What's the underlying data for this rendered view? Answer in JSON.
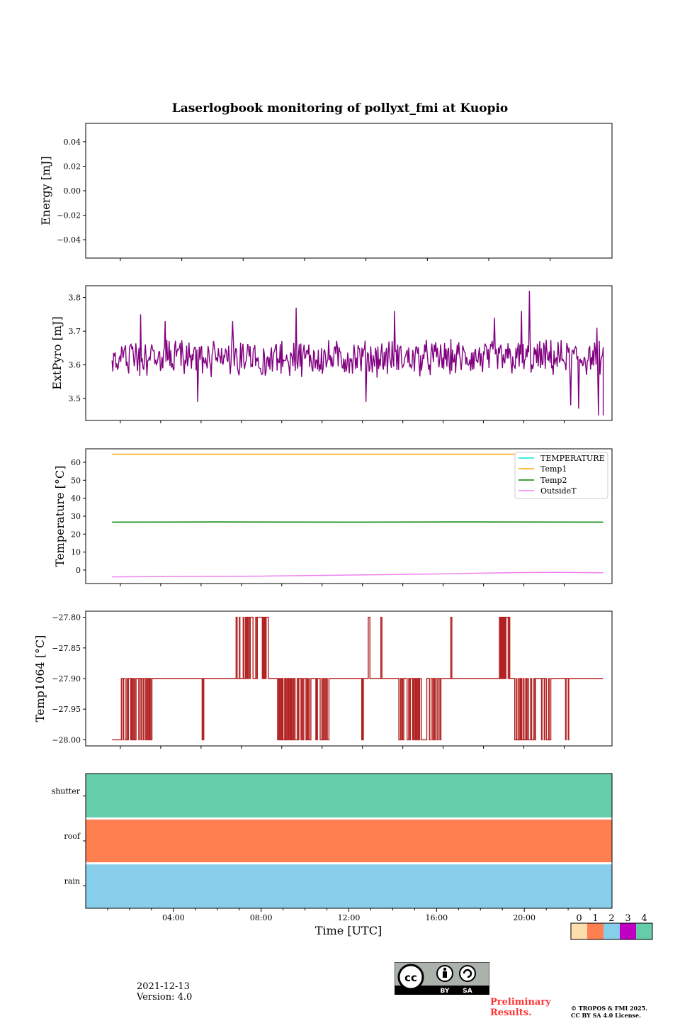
{
  "figure": {
    "title": "Laserlogbook monitoring of pollyxt_fmi at Kuopio",
    "xlabel": "Time [UTC]",
    "date": "2021-12-13",
    "version": "Version: 4.0",
    "preliminary_line1": "Preliminary",
    "preliminary_line2": "Results.",
    "copyright_line1": "© TROPOS & FMI 2025.",
    "copyright_line2": "CC BY SA 4.0 License.",
    "license_badge": [
      "BY",
      "SA"
    ]
  },
  "chart_data": [
    {
      "type": "line",
      "name": "energy",
      "ylabel": "Energy [mJ]",
      "ylim": [
        -0.055,
        0.055
      ],
      "yticks": [
        0.04,
        0.02,
        0.0,
        -0.02,
        -0.04
      ],
      "ytick_labels": [
        "0.04",
        "0.02",
        "0.00",
        "−0.02",
        "−0.04"
      ],
      "xlim": [
        0,
        24
      ],
      "series": []
    },
    {
      "type": "line",
      "name": "extpyro",
      "ylabel": "ExtPyro [mJ]",
      "ylim": [
        3.435,
        3.835
      ],
      "yticks": [
        3.8,
        3.7,
        3.6,
        3.5
      ],
      "ytick_labels": [
        "3.8",
        "3.7",
        "3.6",
        "3.5"
      ],
      "xlim": [
        0,
        24
      ],
      "series": [
        {
          "name": "ExtPyro",
          "color": "#800080",
          "x_range": [
            1.2,
            25.2
          ],
          "mean": 3.62,
          "noise_amplitude": 0.045,
          "spikes": [
            {
              "x": 2.6,
              "y": 3.75
            },
            {
              "x": 3.8,
              "y": 3.73
            },
            {
              "x": 5.4,
              "y": 3.49
            },
            {
              "x": 7.1,
              "y": 3.73
            },
            {
              "x": 10.2,
              "y": 3.77
            },
            {
              "x": 13.6,
              "y": 3.49
            },
            {
              "x": 15.0,
              "y": 3.76
            },
            {
              "x": 19.9,
              "y": 3.74
            },
            {
              "x": 21.2,
              "y": 3.76
            },
            {
              "x": 21.6,
              "y": 3.82
            },
            {
              "x": 23.6,
              "y": 3.48
            },
            {
              "x": 24.0,
              "y": 3.47
            },
            {
              "x": 24.9,
              "y": 3.71
            },
            {
              "x": 24.96,
              "y": 3.45
            }
          ]
        }
      ]
    },
    {
      "type": "line",
      "name": "temperature",
      "ylabel": "Temperature [°C]",
      "ylim": [
        -7.5,
        67.5
      ],
      "yticks": [
        60,
        50,
        40,
        30,
        20,
        10,
        0
      ],
      "ytick_labels": [
        "60",
        "50",
        "40",
        "30",
        "20",
        "10",
        "0"
      ],
      "xlim": [
        0,
        24
      ],
      "legend": [
        "TEMPERATURE",
        "Temp1",
        "Temp2",
        "OutsideT"
      ],
      "legend_position": "top-right",
      "series": [
        {
          "name": "TEMPERATURE",
          "color": "#00e5e5",
          "x": [],
          "values": []
        },
        {
          "name": "Temp1",
          "color": "#ffa500",
          "x": [
            1.2,
            24.0
          ],
          "values": [
            64.5,
            64.5
          ]
        },
        {
          "name": "Temp2",
          "color": "#008000",
          "x": [
            1.2,
            6.0,
            12.0,
            18.0,
            24.0
          ],
          "values": [
            26.7,
            26.8,
            26.7,
            26.8,
            26.7
          ]
        },
        {
          "name": "OutsideT",
          "color": "#ee82ee",
          "x": [
            1.2,
            4.0,
            8.0,
            12.0,
            16.0,
            20.0,
            22.0,
            24.0
          ],
          "values": [
            -3.8,
            -3.6,
            -3.4,
            -2.8,
            -2.2,
            -1.4,
            -1.3,
            -1.5
          ]
        }
      ]
    },
    {
      "type": "line",
      "name": "temp1064",
      "ylabel": "Temp1064 [°C]",
      "ylim": [
        -28.01,
        -27.79
      ],
      "yticks": [
        -27.8,
        -27.85,
        -27.9,
        -27.95,
        -28.0
      ],
      "ytick_labels": [
        "−27.80",
        "−27.85",
        "−27.90",
        "−27.95",
        "−28.00"
      ],
      "xlim": [
        0,
        24
      ],
      "series": [
        {
          "name": "Temp1064",
          "color": "#b22222",
          "x_range": [
            1.2,
            25.2
          ],
          "baseline": -27.9,
          "start_value": -28.0,
          "high_value": -27.8,
          "low_value": -28.0,
          "high_bursts": [
            [
              7.0,
              8.4
            ],
            [
              13.1,
              13.1
            ],
            [
              13.7,
              13.7
            ],
            [
              16.9,
              16.9
            ],
            [
              19.2,
              19.6
            ]
          ],
          "low_bursts": [
            [
              1.2,
              3.1
            ],
            [
              5.4,
              5.4
            ],
            [
              8.9,
              10.4
            ],
            [
              10.6,
              11.2
            ],
            [
              12.8,
              12.8
            ],
            [
              14.5,
              16.4
            ],
            [
              19.9,
              20.8
            ],
            [
              21.1,
              21.5
            ],
            [
              22.2,
              22.4
            ],
            [
              24.3,
              24.5
            ]
          ]
        }
      ]
    },
    {
      "type": "heatmap",
      "name": "status",
      "rows": [
        "shutter",
        "roof",
        "rain"
      ],
      "row_values": [
        4,
        1,
        2
      ],
      "x_range": [
        0,
        24
      ],
      "xticks": [
        4,
        8,
        12,
        16,
        20
      ],
      "xtick_labels": [
        "04:00",
        "08:00",
        "12:00",
        "16:00",
        "20:00"
      ],
      "colorbar": {
        "labels": [
          "0",
          "1",
          "2",
          "3",
          "4"
        ],
        "colors": [
          "#ffdead",
          "#ff7f50",
          "#87ceeb",
          "#c000c0",
          "#66cdaa"
        ]
      }
    }
  ]
}
